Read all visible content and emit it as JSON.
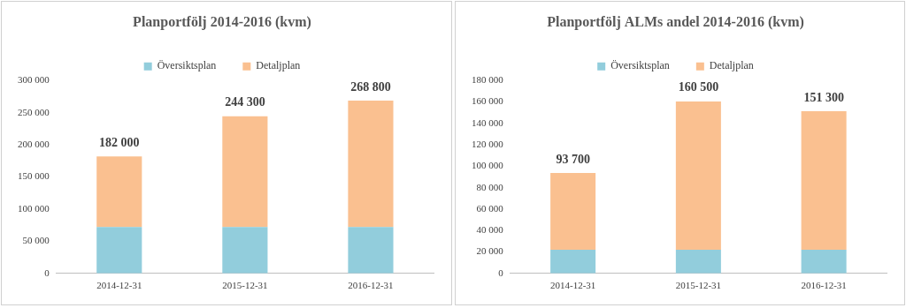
{
  "chart_data": [
    {
      "type": "bar",
      "title": "Planportfölj 2014-2016 (kvm)",
      "categories": [
        "2014-12-31",
        "2015-12-31",
        "2016-12-31"
      ],
      "series": [
        {
          "name": "Översiktsplan",
          "color": "#92cddc",
          "values": [
            72000,
            72000,
            72000
          ]
        },
        {
          "name": "Detaljplan",
          "color": "#fac090",
          "values": [
            110000,
            172300,
            196800
          ]
        }
      ],
      "stacked": true,
      "legend": "top",
      "grid": false,
      "ylim": [
        0,
        300000
      ],
      "yticks": [
        0,
        {
          "value": 50000,
          "label": "50 000"
        },
        {
          "value": 100000,
          "label": "100 000"
        },
        {
          "value": 150000,
          "label": "150 000"
        },
        {
          "value": 200000,
          "label": "200 000"
        },
        {
          "value": 250000,
          "label": "250 000"
        },
        {
          "value": 300000,
          "label": "300 000"
        }
      ],
      "annotations": [
        {
          "category": "2014-12-31",
          "value": 182000,
          "label": "182 000"
        },
        {
          "category": "2015-12-31",
          "value": 244300,
          "label": "244 300"
        },
        {
          "category": "2016-12-31",
          "value": 268800,
          "label": "268 800"
        }
      ]
    },
    {
      "type": "bar",
      "title": "Planportfölj ALMs andel 2014-2016 (kvm)",
      "categories": [
        "2014-12-31",
        "2015-12-31",
        "2016-12-31"
      ],
      "series": [
        {
          "name": "Översiktsplan",
          "color": "#92cddc",
          "values": [
            22000,
            22000,
            22000
          ]
        },
        {
          "name": "Detaljplan",
          "color": "#fac090",
          "values": [
            71700,
            138500,
            129300
          ]
        }
      ],
      "stacked": true,
      "legend": "top",
      "grid": false,
      "ylim": [
        0,
        180000
      ],
      "yticks": [
        0,
        {
          "value": 20000,
          "label": "20 000"
        },
        {
          "value": 40000,
          "label": "40 000"
        },
        {
          "value": 60000,
          "label": "60 000"
        },
        {
          "value": 80000,
          "label": "80 000"
        },
        {
          "value": 100000,
          "label": "100 000"
        },
        {
          "value": 120000,
          "label": "120 000"
        },
        {
          "value": 140000,
          "label": "140 000"
        },
        {
          "value": 160000,
          "label": "160 000"
        },
        {
          "value": 180000,
          "label": "180 000"
        }
      ],
      "annotations": [
        {
          "category": "2014-12-31",
          "value": 93700,
          "label": "93 700"
        },
        {
          "category": "2015-12-31",
          "value": 160500,
          "label": "160 500"
        },
        {
          "category": "2016-12-31",
          "value": 151300,
          "label": "151 300"
        }
      ]
    }
  ]
}
